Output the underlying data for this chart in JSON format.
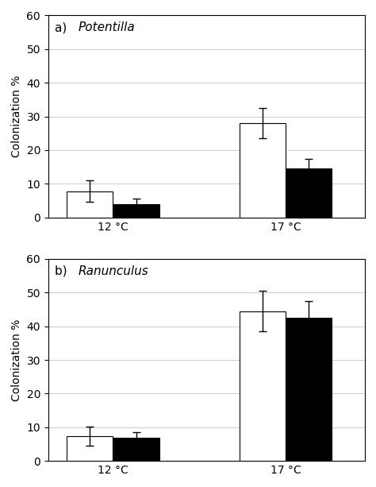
{
  "panel_a": {
    "title_prefix": "a) ",
    "title_italic": "Potentilla",
    "categories": [
      "12 °C",
      "17 °C"
    ],
    "white_bars": [
      7.8,
      28.0
    ],
    "black_bars": [
      4.0,
      14.5
    ],
    "white_errors": [
      3.2,
      4.5
    ],
    "black_errors": [
      1.5,
      3.0
    ],
    "ylim": [
      0,
      60
    ],
    "yticks": [
      0,
      10,
      20,
      30,
      40,
      50,
      60
    ],
    "ylabel": "Colonization %"
  },
  "panel_b": {
    "title_prefix": "b) ",
    "title_italic": "Ranunculus",
    "categories": [
      "12 °C",
      "17 °C"
    ],
    "white_bars": [
      7.3,
      44.5
    ],
    "black_bars": [
      7.0,
      42.5
    ],
    "white_errors": [
      2.8,
      6.0
    ],
    "black_errors": [
      1.5,
      5.0
    ],
    "ylim": [
      0,
      60
    ],
    "yticks": [
      0,
      10,
      20,
      30,
      40,
      50,
      60
    ],
    "ylabel": "Colonization %"
  },
  "bar_width": 0.32,
  "group_centers": [
    1.0,
    2.2
  ],
  "white_color": "#ffffff",
  "black_color": "#000000",
  "edge_color": "#000000",
  "grid_color": "#cccccc",
  "background_color": "#ffffff",
  "figsize": [
    4.74,
    6.13
  ],
  "dpi": 100,
  "title_fontsize": 11,
  "axis_fontsize": 10,
  "tick_fontsize": 10
}
